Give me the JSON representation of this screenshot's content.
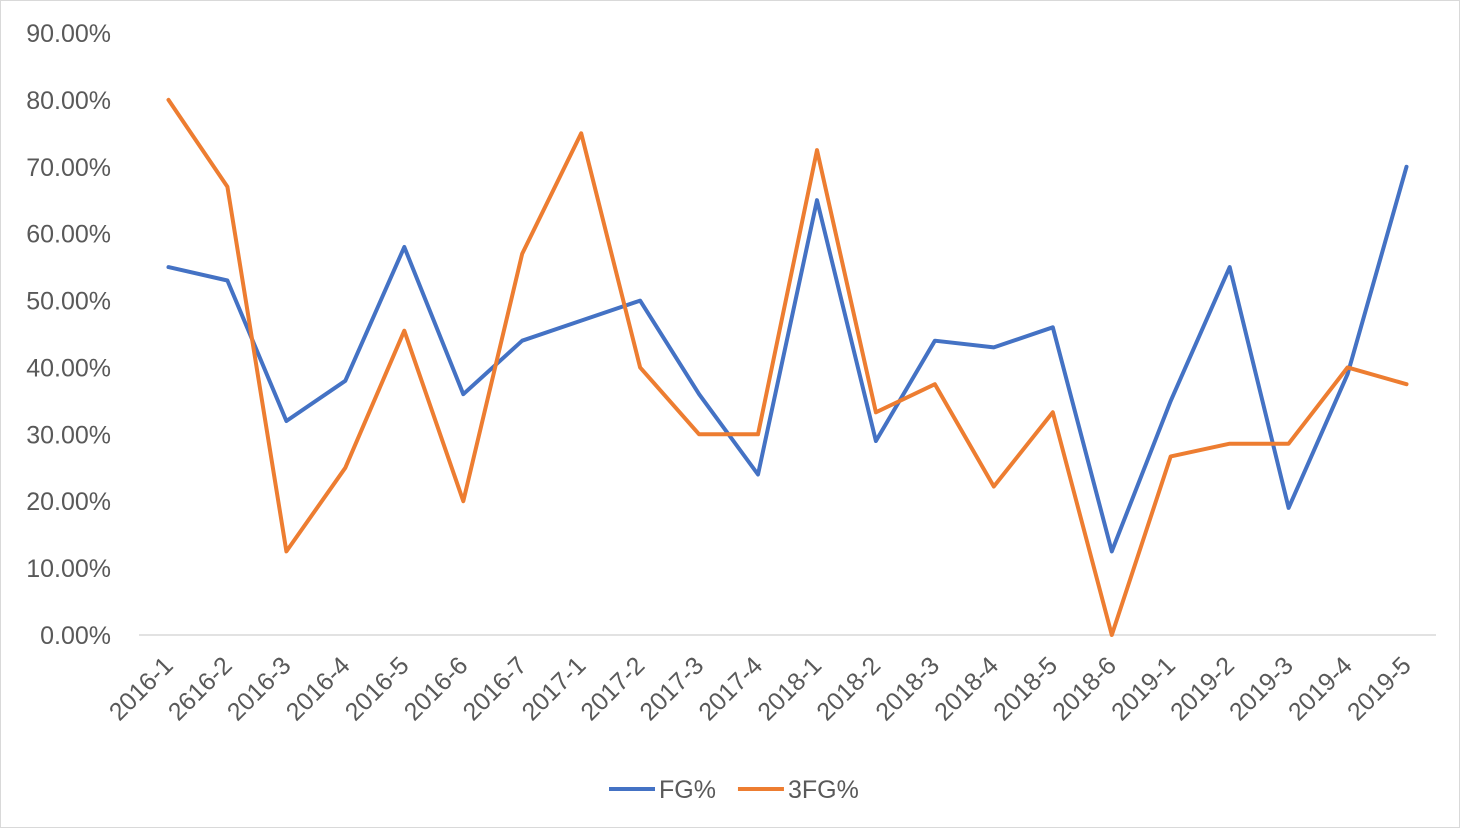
{
  "chart_data": {
    "type": "line",
    "title": "",
    "xlabel": "",
    "ylabel": "",
    "ylim": [
      0,
      0.9
    ],
    "y_tick_values": [
      0,
      0.1,
      0.2,
      0.3,
      0.4,
      0.5,
      0.6,
      0.7,
      0.8,
      0.9
    ],
    "y_tick_labels": [
      "0.00%",
      "10.00%",
      "20.00%",
      "30.00%",
      "40.00%",
      "50.00%",
      "60.00%",
      "70.00%",
      "80.00%",
      "90.00%"
    ],
    "grid": false,
    "legend_position": "bottom",
    "categories": [
      "2016-1",
      "2616-2",
      "2016-3",
      "2016-4",
      "2016-5",
      "2016-6",
      "2016-7",
      "2017-1",
      "2017-2",
      "2017-3",
      "2017-4",
      "2018-1",
      "2018-2",
      "2018-3",
      "2018-4",
      "2018-5",
      "2018-6",
      "2019-1",
      "2019-2",
      "2019-3",
      "2019-4",
      "2019-5"
    ],
    "series": [
      {
        "name": "FG%",
        "color": "#4472c4",
        "values": [
          0.55,
          0.53,
          0.32,
          0.38,
          0.58,
          0.36,
          0.44,
          0.47,
          0.5,
          0.36,
          0.24,
          0.65,
          0.29,
          0.44,
          0.43,
          0.46,
          0.125,
          0.35,
          0.55,
          0.19,
          0.39,
          0.7
        ]
      },
      {
        "name": "3FG%",
        "color": "#ed7d31",
        "values": [
          0.8,
          0.67,
          0.125,
          0.25,
          0.455,
          0.2,
          0.57,
          0.75,
          0.4,
          0.3,
          0.3,
          0.725,
          0.333,
          0.375,
          0.222,
          0.333,
          0.0,
          0.267,
          0.286,
          0.286,
          0.4,
          0.375
        ]
      }
    ]
  }
}
